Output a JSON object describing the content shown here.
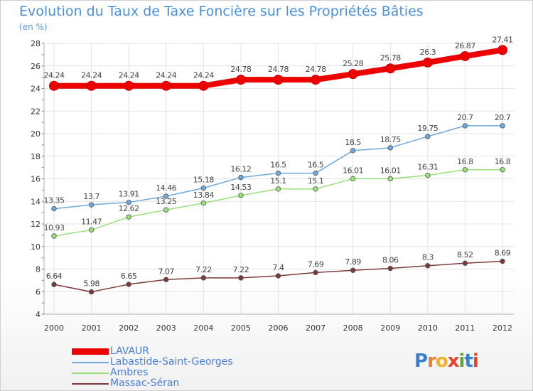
{
  "title": "Evolution du Taux de Taxe Foncière sur les Propriétés Bâties",
  "unit_label": "(en %)",
  "brand": {
    "letters": [
      "P",
      "r",
      "o",
      "x",
      "i",
      "t",
      "i"
    ],
    "colors": [
      "#3a7fd0",
      "#e8812a",
      "#f0b32a",
      "#e8422a",
      "#5aa63c",
      "#3a7fd0",
      "#e8422a"
    ]
  },
  "chart_data": {
    "type": "line",
    "title": "Evolution du Taux de Taxe Foncière sur les Propriétés Bâties",
    "ylabel": "(en %)",
    "xlabel": "",
    "x": [
      "2000",
      "2001",
      "2002",
      "2003",
      "2004",
      "2005",
      "2006",
      "2007",
      "2008",
      "2009",
      "2010",
      "2011",
      "2012"
    ],
    "ylim": [
      4,
      28
    ],
    "yticks": [
      "4",
      "6",
      "8",
      "10",
      "12",
      "14",
      "16",
      "18",
      "20",
      "22",
      "24",
      "26",
      "28"
    ],
    "grid": true,
    "legend": "bottom-left",
    "series": [
      {
        "name": "LAVAUR",
        "color": "#ee0000",
        "values": [
          24.24,
          24.24,
          24.24,
          24.24,
          24.24,
          24.78,
          24.78,
          24.78,
          25.28,
          25.78,
          26.3,
          26.87,
          27.41
        ],
        "labels": [
          "24.24",
          "24.24",
          "24.24",
          "24.24",
          "24.24",
          "24.78",
          "24.78",
          "24.78",
          "25.28",
          "25.78",
          "26.3",
          "26.87",
          "27.41"
        ]
      },
      {
        "name": "Labastide-Saint-Georges",
        "color": "#6fa8dc",
        "values": [
          13.35,
          13.7,
          13.91,
          14.46,
          15.18,
          16.12,
          16.5,
          16.5,
          18.5,
          18.75,
          19.75,
          20.7,
          20.7
        ],
        "labels": [
          "13.35",
          "13.7",
          "13.91",
          "14.46",
          "15.18",
          "16.12",
          "16.5",
          "16.5",
          "18.5",
          "18.75",
          "19.75",
          "20.7",
          "20.7"
        ]
      },
      {
        "name": "Ambres",
        "color": "#99e07a",
        "values": [
          10.93,
          11.47,
          12.62,
          13.25,
          13.84,
          14.53,
          15.1,
          15.1,
          16.01,
          16.01,
          16.31,
          16.8,
          16.8
        ],
        "labels": [
          "10.93",
          "11.47",
          "12.62",
          "13.25",
          "13.84",
          "14.53",
          "15.1",
          "15.1",
          "16.01",
          "16.01",
          "16.31",
          "16.8",
          "16.8"
        ]
      },
      {
        "name": "Massac-Séran",
        "color": "#7a3a3a",
        "values": [
          6.64,
          5.98,
          6.65,
          7.07,
          7.22,
          7.22,
          7.4,
          7.69,
          7.89,
          8.06,
          8.3,
          8.52,
          8.69
        ],
        "labels": [
          "6.64",
          "5.98",
          "6.65",
          "7.07",
          "7.22",
          "7.22",
          "7.4",
          "7.69",
          "7.89",
          "8.06",
          "8.3",
          "8.52",
          "8.69"
        ]
      }
    ]
  }
}
